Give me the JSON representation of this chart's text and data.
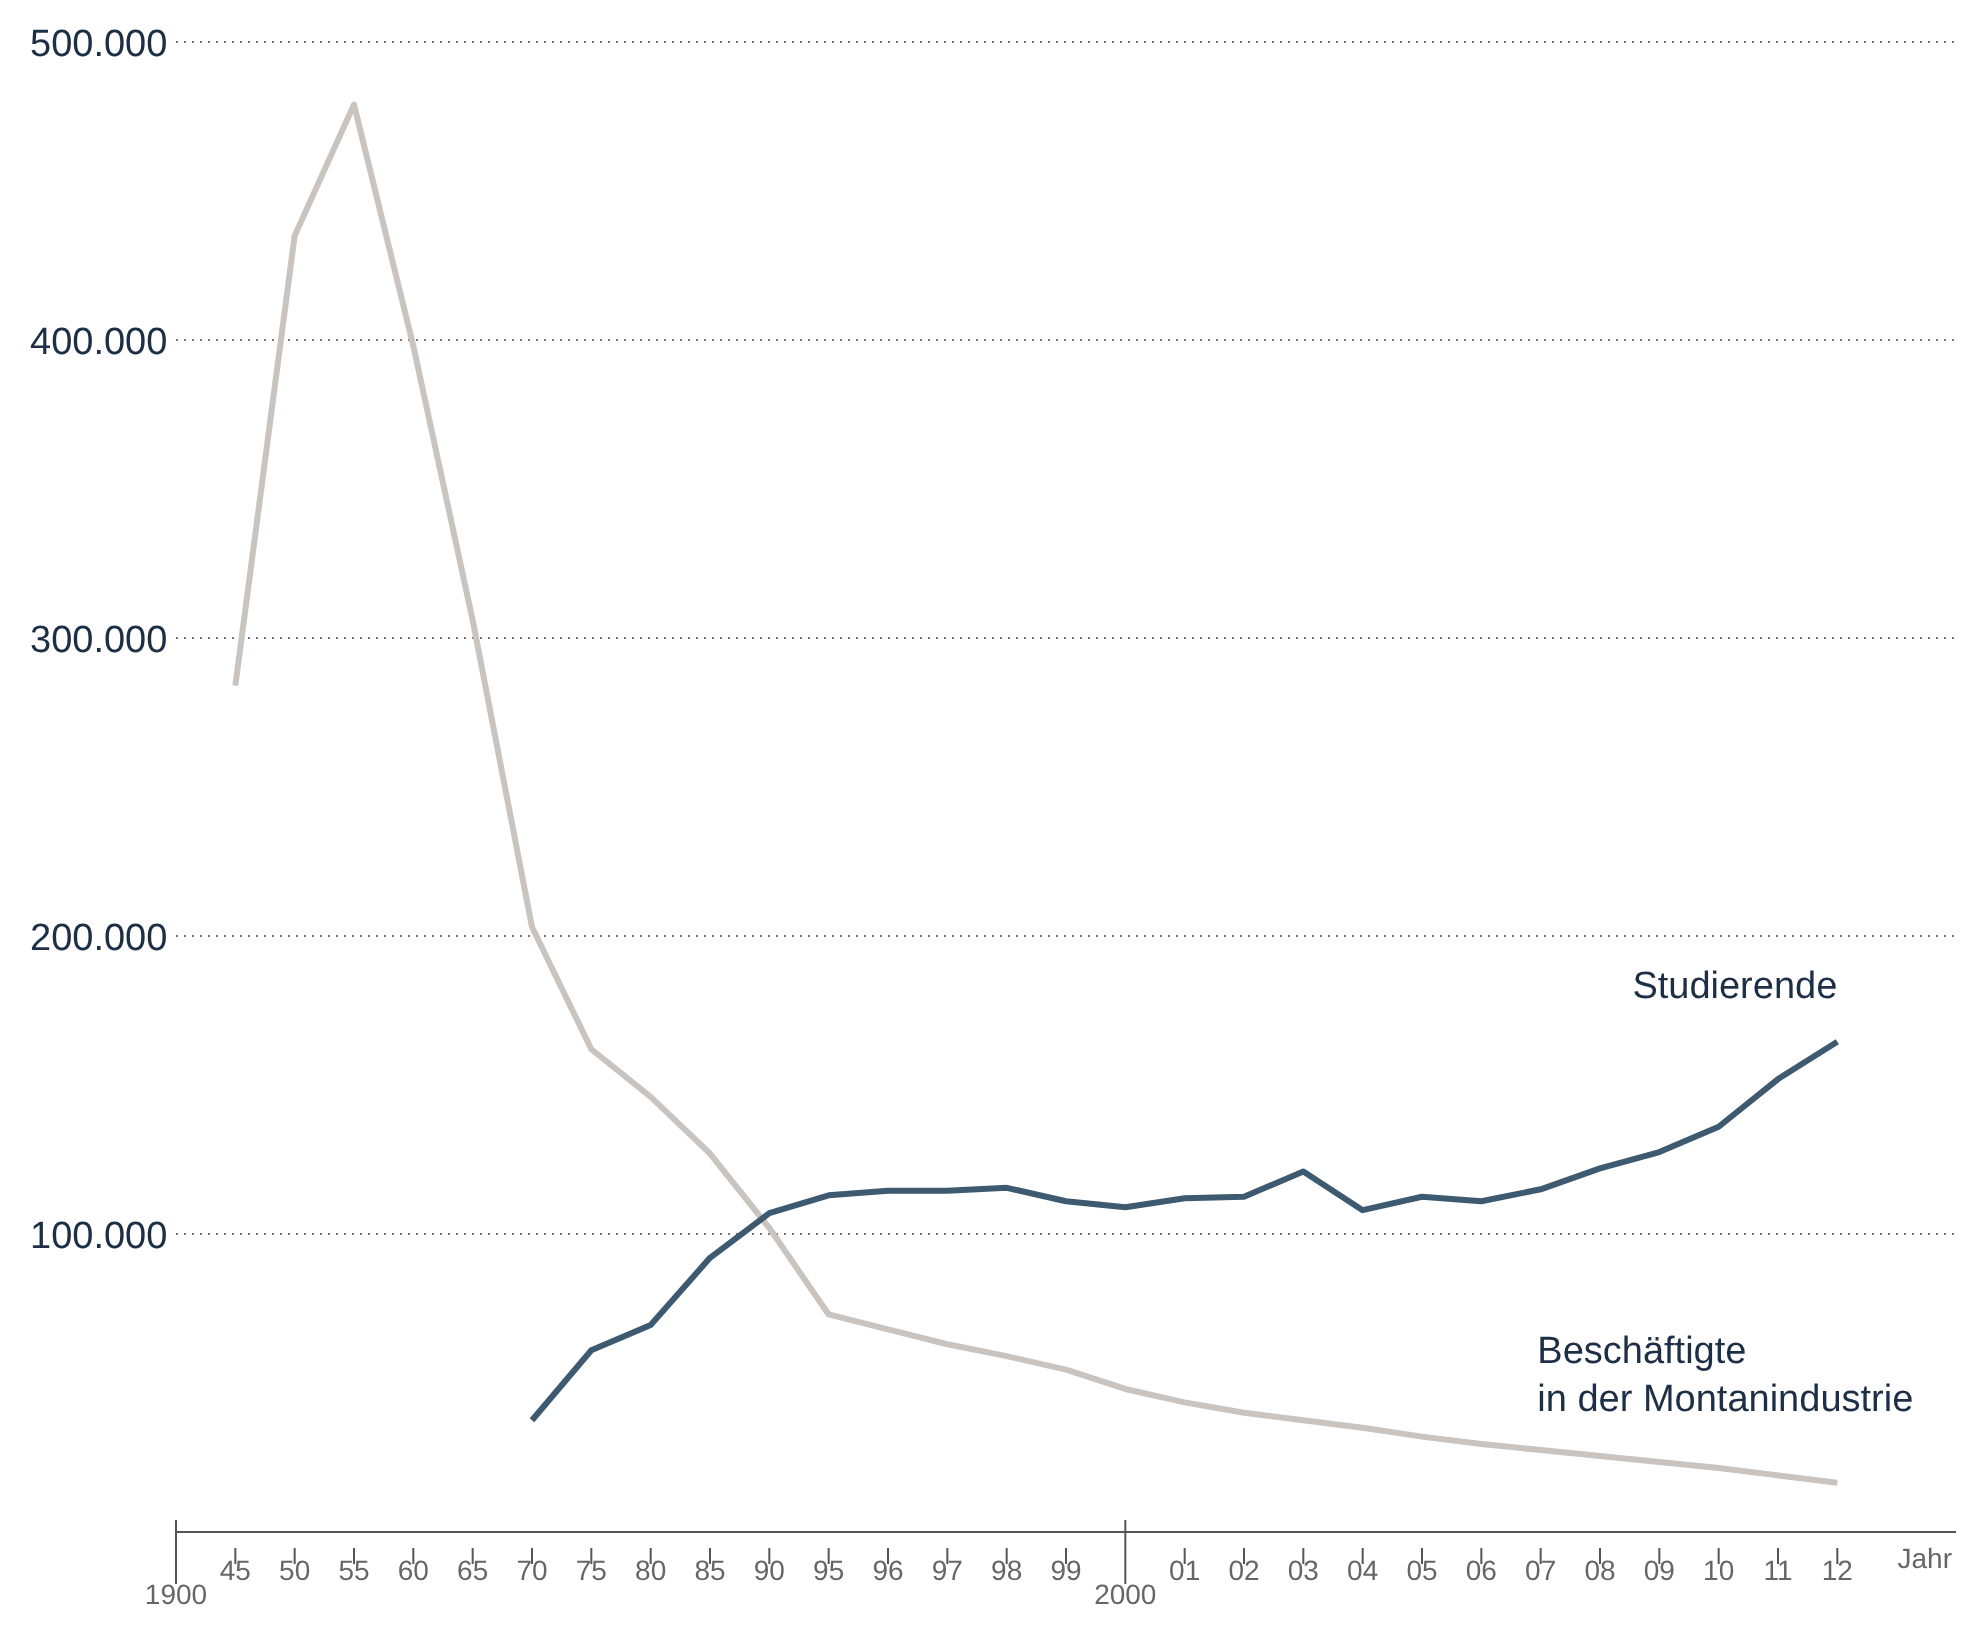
{
  "chart_data": {
    "type": "line",
    "xlabel": "Jahr",
    "categories": [
      "1900",
      "45",
      "50",
      "55",
      "60",
      "65",
      "70",
      "75",
      "80",
      "85",
      "90",
      "95",
      "96",
      "97",
      "98",
      "99",
      "2000",
      "01",
      "02",
      "03",
      "04",
      "05",
      "06",
      "07",
      "08",
      "09",
      "10",
      "11",
      "12"
    ],
    "series": [
      {
        "name": "Beschäftigte\nin der Montanindustrie",
        "color": "#c9c4bf",
        "values": [
          null,
          284000,
          435000,
          479000,
          398000,
          306000,
          203000,
          162000,
          146000,
          127000,
          102000,
          73000,
          68000,
          63000,
          59000,
          54500,
          48000,
          43500,
          40000,
          37500,
          35000,
          32000,
          29500,
          27500,
          25500,
          23500,
          21500,
          19000,
          16500
        ]
      },
      {
        "name": "Studierende",
        "color": "#3d5a70",
        "values": [
          null,
          null,
          null,
          null,
          null,
          null,
          37500,
          61000,
          69500,
          92000,
          107000,
          113000,
          114500,
          114500,
          115500,
          111000,
          109000,
          112000,
          112500,
          121000,
          108000,
          112500,
          111000,
          115000,
          122000,
          127500,
          136000,
          152000,
          164500
        ]
      }
    ],
    "ylim": [
      0,
      500000
    ],
    "yticks": [
      {
        "value": 100000,
        "label": "100.000"
      },
      {
        "value": 200000,
        "label": "200.000"
      },
      {
        "value": 300000,
        "label": "300.000"
      },
      {
        "value": 400000,
        "label": "400.000"
      },
      {
        "value": 500000,
        "label": "500.000"
      }
    ],
    "grid": "y",
    "marker": "none",
    "line_style": "solid"
  }
}
